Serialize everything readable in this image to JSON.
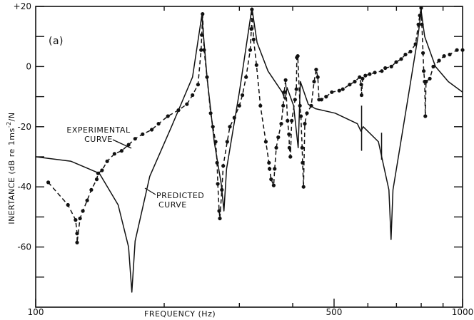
{
  "chart_data": {
    "type": "line",
    "panel_label": "(a)",
    "xlabel": "FREQUENCY  (Hz)",
    "ylabel": "INERTANCE  (dB re 1ms",
    "ylabel_sup": "-2",
    "ylabel_tail": "/N",
    "xscale": "log",
    "xlim": [
      100,
      1000
    ],
    "ylim": [
      -80,
      20
    ],
    "x_tick_labels": [
      {
        "value": 100,
        "label": "100"
      },
      {
        "value": 500,
        "label": "500"
      },
      {
        "value": 1000,
        "label": "1000"
      }
    ],
    "x_minor_ticks": [
      200,
      300,
      400,
      600,
      700,
      800,
      900
    ],
    "y_tick_labels": [
      {
        "value": 20,
        "label": "+20"
      },
      {
        "value": 0,
        "label": "0"
      },
      {
        "value": -20,
        "label": "-20"
      },
      {
        "value": -40,
        "label": "-40"
      },
      {
        "value": -60,
        "label": "-60"
      }
    ],
    "y_minor_ticks": [
      10,
      -10,
      -30,
      -50,
      -70
    ],
    "annotations": {
      "experimental": [
        "EXPERIMENTAL",
        "CURVE"
      ],
      "predicted": [
        "PREDICTED",
        "CURVE"
      ]
    },
    "series": [
      {
        "name": "Predicted curve",
        "style": "solid",
        "points": [
          [
            100,
            -30
          ],
          [
            121,
            -31.5
          ],
          [
            141,
            -35.5
          ],
          [
            156,
            -46
          ],
          [
            165,
            -60
          ],
          [
            168,
            -75
          ],
          [
            171,
            -58
          ],
          [
            185,
            -36.5
          ],
          [
            208,
            -20
          ],
          [
            233,
            -3.5
          ],
          [
            245,
            17
          ],
          [
            252,
            -3.5
          ],
          [
            262,
            -25
          ],
          [
            272,
            -39
          ],
          [
            276,
            -48
          ],
          [
            280,
            -34
          ],
          [
            300,
            -8.5
          ],
          [
            321,
            19.5
          ],
          [
            330,
            8
          ],
          [
            350,
            -1.5
          ],
          [
            378,
            -8.5
          ],
          [
            384,
            -11
          ],
          [
            388,
            -7
          ],
          [
            402,
            -13
          ],
          [
            412,
            -27
          ],
          [
            417,
            -5
          ],
          [
            435,
            -12.5
          ],
          [
            452,
            -14
          ],
          [
            503,
            -15.5
          ],
          [
            567,
            -19
          ],
          [
            578,
            -21.5
          ],
          [
            585,
            -20
          ],
          [
            635,
            -25
          ],
          [
            672,
            -41
          ],
          [
            680,
            -57.5
          ],
          [
            687,
            -41
          ],
          [
            740,
            -13
          ],
          [
            786,
            10
          ],
          [
            800,
            18.5
          ],
          [
            815,
            10
          ],
          [
            864,
            0
          ],
          [
            926,
            -5
          ],
          [
            1000,
            -8.5
          ]
        ],
        "spikes": [
          [
            580,
            -13,
            -28
          ],
          [
            646,
            -22,
            -31
          ]
        ]
      },
      {
        "name": "Experimental curve",
        "style": "dashed-with-markers",
        "points": [
          [
            107,
            -38.5
          ],
          [
            119,
            -46
          ],
          [
            124,
            -51
          ],
          [
            125,
            -55.5
          ],
          [
            125,
            -58.5
          ],
          [
            127,
            -50.5
          ],
          [
            129,
            -48
          ],
          [
            132,
            -44.5
          ],
          [
            135,
            -41
          ],
          [
            139,
            -37.5
          ],
          [
            140,
            -35.5
          ],
          [
            143,
            -34.5
          ],
          [
            147,
            -31.5
          ],
          [
            153,
            -29
          ],
          [
            159,
            -28
          ],
          [
            165,
            -26
          ],
          [
            171,
            -24
          ],
          [
            178,
            -22.5
          ],
          [
            187,
            -21
          ],
          [
            194,
            -19
          ],
          [
            204,
            -16.5
          ],
          [
            216,
            -14.5
          ],
          [
            226,
            -12.5
          ],
          [
            233,
            -9.5
          ],
          [
            240,
            -6
          ],
          [
            244,
            5.5
          ],
          [
            245,
            10.5
          ],
          [
            246,
            17.5
          ],
          [
            248,
            5.5
          ],
          [
            252,
            -3.5
          ],
          [
            257,
            -15.5
          ],
          [
            260,
            -20
          ],
          [
            264,
            -25
          ],
          [
            266,
            -32
          ],
          [
            267,
            -39
          ],
          [
            269,
            -48
          ],
          [
            270,
            -50.5
          ],
          [
            273,
            -41
          ],
          [
            275,
            -33
          ],
          [
            281,
            -25
          ],
          [
            285,
            -20
          ],
          [
            292,
            -17
          ],
          [
            300,
            -13
          ],
          [
            305,
            -9.5
          ],
          [
            311,
            -3.5
          ],
          [
            318,
            5.5
          ],
          [
            320,
            12.5
          ],
          [
            321,
            19
          ],
          [
            324,
            9
          ],
          [
            329,
            0.5
          ],
          [
            336,
            -13
          ],
          [
            346,
            -25
          ],
          [
            352,
            -32
          ],
          [
            353,
            -34
          ],
          [
            356,
            -37.5
          ],
          [
            361,
            -39.5
          ],
          [
            363,
            -34
          ],
          [
            366,
            -27
          ],
          [
            370,
            -23.5
          ],
          [
            376,
            -19
          ],
          [
            380,
            -13
          ],
          [
            382,
            -8.5
          ],
          [
            385,
            -4.5
          ],
          [
            389,
            -18
          ],
          [
            392,
            -22.5
          ],
          [
            393,
            -27
          ],
          [
            395,
            -30
          ],
          [
            398,
            -18
          ],
          [
            405,
            -11
          ],
          [
            408,
            -7.5
          ],
          [
            409,
            3
          ],
          [
            411,
            3.5
          ],
          [
            416,
            -13
          ],
          [
            418,
            -16.5
          ],
          [
            421,
            -27
          ],
          [
            422,
            -32
          ],
          [
            424,
            -40
          ],
          [
            427,
            -19
          ],
          [
            432,
            -15.5
          ],
          [
            442,
            -13
          ],
          [
            449,
            -5
          ],
          [
            454,
            -1
          ],
          [
            458,
            -3.5
          ],
          [
            461,
            -11
          ],
          [
            467,
            -11
          ],
          [
            479,
            -10
          ],
          [
            494,
            -8.5
          ],
          [
            514,
            -8
          ],
          [
            524,
            -7.5
          ],
          [
            544,
            -6
          ],
          [
            559,
            -5
          ],
          [
            574,
            -3.5
          ],
          [
            579,
            -6
          ],
          [
            580,
            -9.5
          ],
          [
            583,
            -4
          ],
          [
            592,
            -3
          ],
          [
            606,
            -2.5
          ],
          [
            623,
            -2
          ],
          [
            647,
            -1.5
          ],
          [
            659,
            -0.5
          ],
          [
            681,
            0
          ],
          [
            699,
            1.5
          ],
          [
            718,
            2.5
          ],
          [
            735,
            4
          ],
          [
            755,
            5
          ],
          [
            776,
            7.5
          ],
          [
            788,
            14
          ],
          [
            794,
            17
          ],
          [
            800,
            19.5
          ],
          [
            803,
            14
          ],
          [
            808,
            4.5
          ],
          [
            811,
            -1.5
          ],
          [
            815,
            -5
          ],
          [
            818,
            -16.5
          ],
          [
            821,
            -5
          ],
          [
            838,
            -4
          ],
          [
            854,
            0
          ],
          [
            881,
            2
          ],
          [
            905,
            3.5
          ],
          [
            933,
            4
          ],
          [
            970,
            5.5
          ],
          [
            1000,
            5.5
          ]
        ]
      }
    ]
  }
}
